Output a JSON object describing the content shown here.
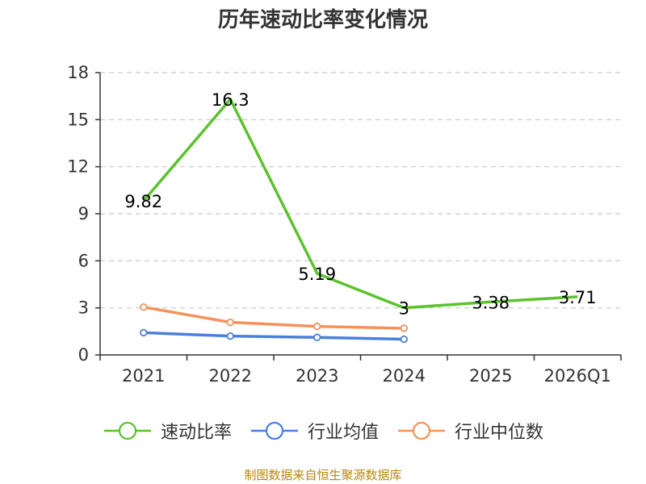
{
  "chart_data": {
    "type": "line",
    "title": "历年速动比率变化情况",
    "categories": [
      "2021",
      "2022",
      "2023",
      "2024",
      "2025",
      "2026Q1"
    ],
    "ylim": [
      0,
      18
    ],
    "yticks": [
      0,
      3,
      6,
      9,
      12,
      15,
      18
    ],
    "grid": true,
    "legend_position": "bottom",
    "series": [
      {
        "name": "速动比率",
        "color": "#5cc22e",
        "values": [
          9.82,
          16.3,
          5.19,
          3,
          3.38,
          3.71
        ],
        "labels": [
          "9.82",
          "16.3",
          "5.19",
          "3",
          "3.38",
          "3.71"
        ]
      },
      {
        "name": "行业均值",
        "color": "#4a7fdc",
        "values": [
          1.42,
          1.2,
          1.12,
          1.0,
          null,
          null
        ]
      },
      {
        "name": "行业中位数",
        "color": "#f5925a",
        "values": [
          3.05,
          2.08,
          1.82,
          1.7,
          null,
          null
        ]
      }
    ]
  },
  "source_note": "制图数据来自恒生聚源数据库"
}
